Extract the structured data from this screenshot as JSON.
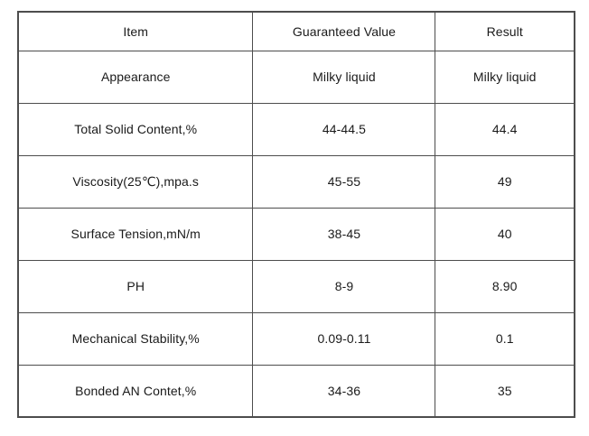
{
  "table": {
    "columns": [
      {
        "label": "Item"
      },
      {
        "label": "Guaranteed Value"
      },
      {
        "label": "Result"
      }
    ],
    "rows": [
      {
        "item": "Appearance",
        "guaranteed": "Milky liquid",
        "result": "Milky liquid"
      },
      {
        "item": "Total Solid Content,%",
        "guaranteed": "44-44.5",
        "result": "44.4"
      },
      {
        "item": "Viscosity(25℃),mpa.s",
        "guaranteed": "45-55",
        "result": "49"
      },
      {
        "item": "Surface Tension,mN/m",
        "guaranteed": "38-45",
        "result": "40"
      },
      {
        "item": "PH",
        "guaranteed": "8-9",
        "result": "8.90"
      },
      {
        "item": "Mechanical Stability,%",
        "guaranteed": "0.09-0.11",
        "result": "0.1"
      },
      {
        "item": "Bonded AN Contet,%",
        "guaranteed": "34-36",
        "result": "35"
      }
    ],
    "colors": {
      "text": "#1a1a1a",
      "border": "#4d4d4d",
      "background": "#ffffff"
    }
  }
}
